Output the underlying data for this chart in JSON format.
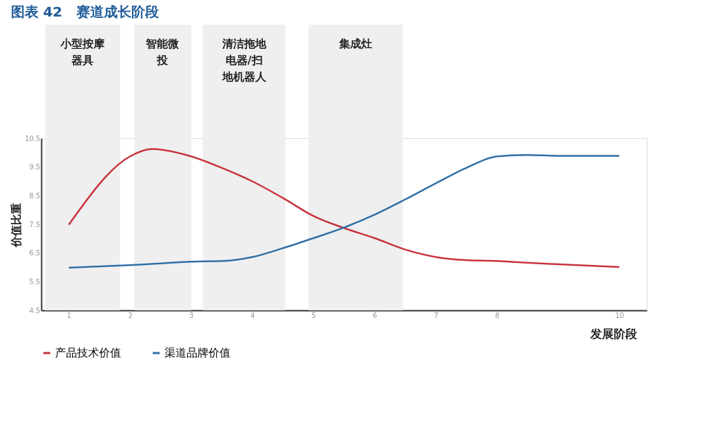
{
  "chart_data": {
    "type": "line",
    "title": "图表 42　赛道成长阶段",
    "xlabel": "发展阶段",
    "ylabel": "价值比重",
    "x": [
      1,
      2,
      2.35,
      3,
      3.5,
      4,
      4.5,
      5,
      5.5,
      6,
      6.5,
      7,
      7.5,
      8,
      8.5,
      9,
      10
    ],
    "series": [
      {
        "name": "产品技术价值",
        "color": "#c8323c",
        "values": [
          7.49,
          9.87,
          10.13,
          9.87,
          9.47,
          9.0,
          8.42,
          7.79,
          7.37,
          7.02,
          6.62,
          6.36,
          6.25,
          6.22,
          6.16,
          6.11,
          6.01
        ]
      },
      {
        "name": "渠道品牌价值",
        "color": "#2e6fa6",
        "values": [
          5.99,
          6.08,
          6.12,
          6.2,
          6.22,
          6.36,
          6.67,
          7.02,
          7.39,
          7.84,
          8.37,
          8.93,
          9.47,
          9.87,
          9.92,
          9.89,
          9.89
        ]
      }
    ],
    "bands": [
      {
        "axis": "x",
        "from": 0.61,
        "to": 1.84,
        "label": "小型按摩器具",
        "color": "#efefef"
      },
      {
        "axis": "x",
        "from": 2.07,
        "to": 3.0,
        "label": "智能微投",
        "color": "#efefef"
      },
      {
        "axis": "x",
        "from": 3.19,
        "to": 4.54,
        "label": "清洁拖地电器/扫地机器人",
        "color": "#efefef"
      },
      {
        "axis": "x",
        "from": 4.92,
        "to": 6.46,
        "label": "集成灶",
        "color": "#efefef"
      }
    ],
    "xlim": [
      0.55,
      10.45
    ],
    "xticks": [
      1,
      2,
      3,
      4,
      5,
      6,
      7,
      8,
      10
    ],
    "ylim": [
      4.5,
      10.5
    ],
    "yticks": [
      4.5,
      5.5,
      6.5,
      7.5,
      8.5,
      9.5,
      10.5
    ],
    "grid": false,
    "legend": "bottom",
    "marker": "none",
    "line_style": "solid"
  }
}
